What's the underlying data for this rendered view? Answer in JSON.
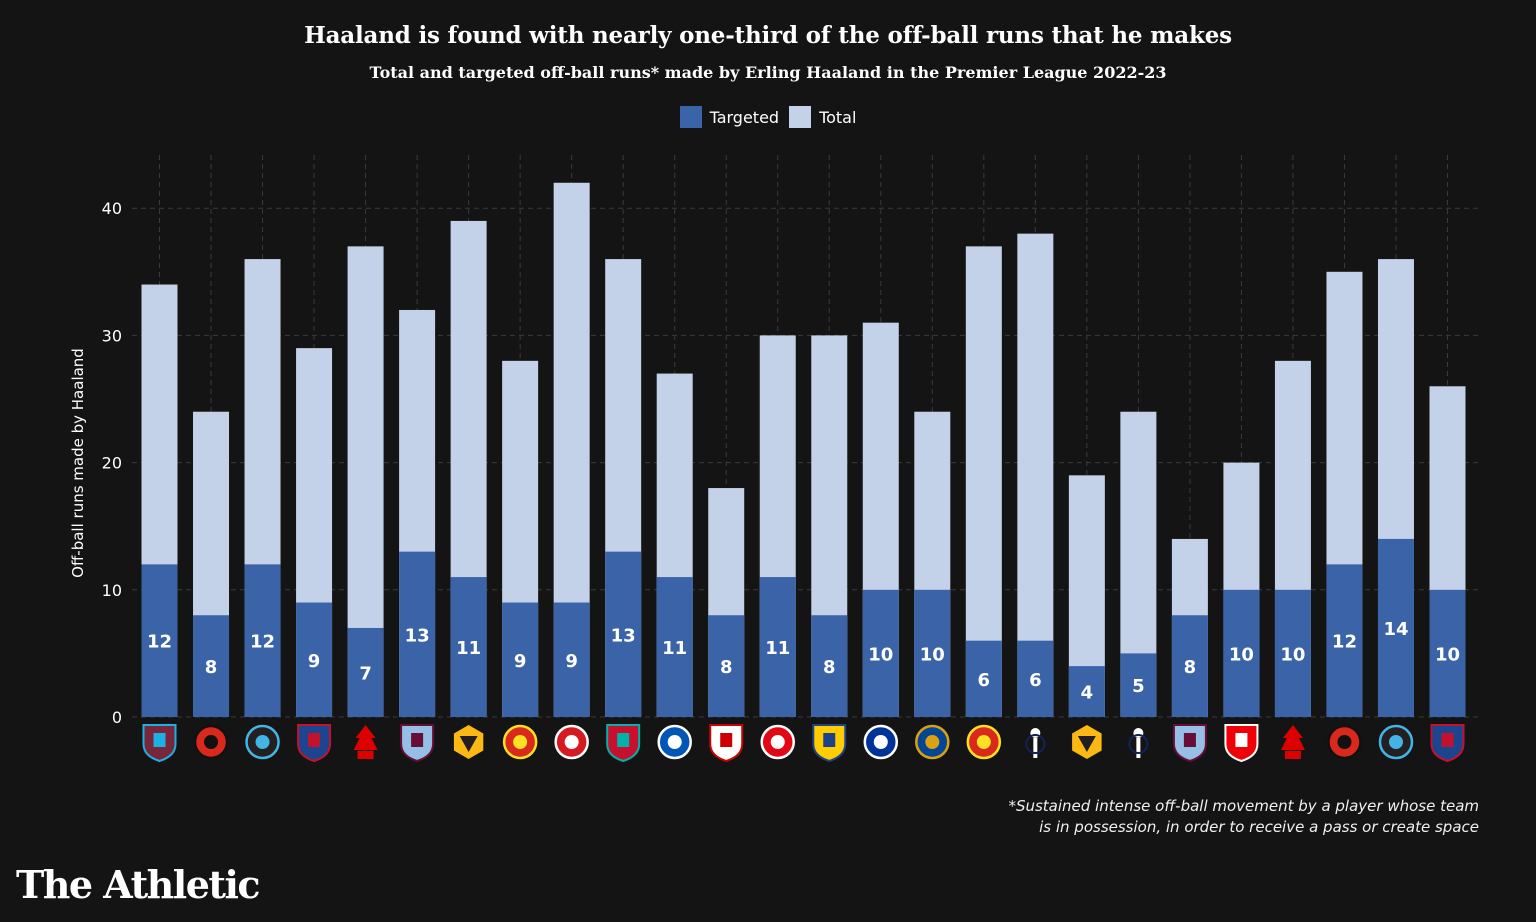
{
  "title": "Haaland is found with nearly one-third of the off-ball runs that he makes",
  "subtitle": "Total and targeted off-ball runs* made by Erling Haaland in the Premier League 2022-23",
  "legend": {
    "targeted_label": "Targeted",
    "total_label": "Total"
  },
  "colors": {
    "background": "#141414",
    "targeted": "#3b64a8",
    "total": "#c3d2e8",
    "grid": "#3a3a3a"
  },
  "footnote": {
    "line1": "*Sustained intense off-ball movement by a player whose team",
    "line2": "is in possession, in order to receive a pass or create space"
  },
  "brand": "The Athletic",
  "chart_data": {
    "type": "bar",
    "ylabel": "Off-ball runs made by Haaland",
    "xlabel": "",
    "ylim": [
      0,
      44
    ],
    "yticks": [
      0,
      10,
      20,
      30,
      40
    ],
    "grid": true,
    "legend_position": "top-center",
    "categories": [
      "West Ham",
      "Bournemouth",
      "Newcastle",
      "Crystal Palace",
      "Nottingham Forest",
      "Aston Villa",
      "Wolves",
      "Manchester United",
      "Southampton",
      "Liverpool",
      "Brighton",
      "Fulham",
      "Brentford",
      "Leeds",
      "Everton",
      "Chelsea",
      "Manchester United",
      "Tottenham",
      "Wolves",
      "Tottenham",
      "Aston Villa",
      "Arsenal",
      "Nottingham Forest",
      "Bournemouth",
      "Newcastle",
      "Crystal Palace"
    ],
    "badge_icons": [
      {
        "name": "west-ham-badge-icon",
        "primary": "#7a263a",
        "secondary": "#1bb1e7",
        "shape": "shield"
      },
      {
        "name": "bournemouth-badge-icon",
        "primary": "#da291c",
        "secondary": "#111111",
        "shape": "round"
      },
      {
        "name": "newcastle-badge-icon",
        "primary": "#241f20",
        "secondary": "#41b6e6",
        "shape": "round"
      },
      {
        "name": "crystal-palace-badge-icon",
        "primary": "#1b458f",
        "secondary": "#c4122e",
        "shape": "shield"
      },
      {
        "name": "nottingham-forest-badge-icon",
        "primary": "#dd0000",
        "secondary": "#ffffff",
        "shape": "tree"
      },
      {
        "name": "aston-villa-badge-icon",
        "primary": "#95bfe5",
        "secondary": "#670e36",
        "shape": "shield"
      },
      {
        "name": "wolves-badge-icon",
        "primary": "#fdb913",
        "secondary": "#231f20",
        "shape": "hex"
      },
      {
        "name": "manchester-united-badge-icon",
        "primary": "#da291c",
        "secondary": "#fbe122",
        "shape": "round"
      },
      {
        "name": "southampton-badge-icon",
        "primary": "#d71920",
        "secondary": "#ffffff",
        "shape": "round"
      },
      {
        "name": "liverpool-badge-icon",
        "primary": "#c8102e",
        "secondary": "#00b2a9",
        "shape": "shield"
      },
      {
        "name": "brighton-badge-icon",
        "primary": "#0057b8",
        "secondary": "#ffffff",
        "shape": "round"
      },
      {
        "name": "fulham-badge-icon",
        "primary": "#ffffff",
        "secondary": "#cc0000",
        "shape": "shield"
      },
      {
        "name": "brentford-badge-icon",
        "primary": "#e30613",
        "secondary": "#ffffff",
        "shape": "round"
      },
      {
        "name": "leeds-badge-icon",
        "primary": "#ffcd00",
        "secondary": "#1d428a",
        "shape": "shield"
      },
      {
        "name": "everton-badge-icon",
        "primary": "#003399",
        "secondary": "#ffffff",
        "shape": "round"
      },
      {
        "name": "chelsea-badge-icon",
        "primary": "#034694",
        "secondary": "#dba111",
        "shape": "round"
      },
      {
        "name": "manchester-united-badge-icon",
        "primary": "#da291c",
        "secondary": "#fbe122",
        "shape": "round"
      },
      {
        "name": "tottenham-badge-icon",
        "primary": "#132257",
        "secondary": "#ffffff",
        "shape": "cockerel"
      },
      {
        "name": "wolves-badge-icon",
        "primary": "#fdb913",
        "secondary": "#231f20",
        "shape": "hex"
      },
      {
        "name": "tottenham-badge-icon",
        "primary": "#132257",
        "secondary": "#ffffff",
        "shape": "cockerel"
      },
      {
        "name": "aston-villa-badge-icon",
        "primary": "#95bfe5",
        "secondary": "#670e36",
        "shape": "shield"
      },
      {
        "name": "arsenal-badge-icon",
        "primary": "#ef0107",
        "secondary": "#ffffff",
        "shape": "shield"
      },
      {
        "name": "nottingham-forest-badge-icon",
        "primary": "#dd0000",
        "secondary": "#ffffff",
        "shape": "tree"
      },
      {
        "name": "bournemouth-badge-icon",
        "primary": "#da291c",
        "secondary": "#111111",
        "shape": "round"
      },
      {
        "name": "newcastle-badge-icon",
        "primary": "#241f20",
        "secondary": "#41b6e6",
        "shape": "round"
      },
      {
        "name": "crystal-palace-badge-icon",
        "primary": "#1b458f",
        "secondary": "#c4122e",
        "shape": "shield"
      }
    ],
    "series": [
      {
        "name": "Total",
        "values": [
          34,
          24,
          36,
          29,
          37,
          32,
          39,
          28,
          42,
          36,
          27,
          18,
          30,
          30,
          31,
          24,
          37,
          38,
          19,
          24,
          14,
          20,
          28,
          35,
          36,
          26
        ]
      },
      {
        "name": "Targeted",
        "values": [
          12,
          8,
          12,
          9,
          7,
          13,
          11,
          9,
          9,
          13,
          11,
          8,
          11,
          8,
          10,
          10,
          6,
          6,
          4,
          5,
          8,
          10,
          10,
          12,
          14,
          10
        ]
      }
    ]
  }
}
